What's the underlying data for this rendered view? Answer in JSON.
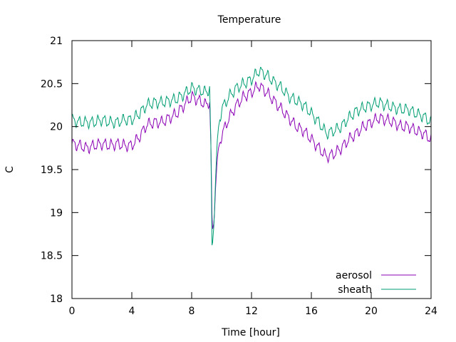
{
  "chart_data": {
    "type": "line",
    "title": "Temperature",
    "xlabel": "Time [hour]",
    "ylabel": "C",
    "xlim": [
      0,
      24
    ],
    "ylim": [
      18,
      21
    ],
    "xticks": [
      "0",
      "4",
      "8",
      "12",
      "16",
      "20",
      "24"
    ],
    "yticks": [
      "18",
      "18.5",
      "19",
      "19.5",
      "20",
      "20.5",
      "21"
    ],
    "grid": false,
    "legend_position": "bottom-right",
    "series": [
      {
        "name": "aerosol",
        "color": "#8b00b5",
        "x": [
          0,
          0.5,
          1,
          1.5,
          2,
          2.5,
          3,
          3.5,
          4,
          4.5,
          5,
          5.5,
          6,
          6.5,
          7,
          7.5,
          8,
          8.5,
          9,
          9.2,
          9.3,
          9.35,
          9.4,
          9.5,
          9.6,
          9.7,
          9.8,
          10,
          10.5,
          11,
          11.5,
          12,
          12.5,
          13,
          13.5,
          14,
          14.5,
          15,
          15.5,
          16,
          16.5,
          17,
          17.5,
          18,
          18.5,
          19,
          19.5,
          20,
          20.5,
          21,
          21.5,
          22,
          22.5,
          23,
          23.5,
          24
        ],
        "y": [
          19.8,
          19.78,
          19.75,
          19.78,
          19.8,
          19.78,
          19.8,
          19.78,
          19.78,
          19.88,
          20.02,
          20.05,
          20.05,
          20.1,
          20.15,
          20.25,
          20.35,
          20.3,
          20.25,
          20.3,
          19.7,
          19.0,
          18.8,
          18.9,
          19.3,
          19.6,
          19.75,
          19.9,
          20.1,
          20.25,
          20.35,
          20.4,
          20.48,
          20.4,
          20.3,
          20.2,
          20.1,
          20.0,
          19.95,
          19.85,
          19.75,
          19.65,
          19.68,
          19.75,
          19.85,
          19.92,
          20.0,
          20.05,
          20.1,
          20.08,
          20.05,
          20.0,
          20.0,
          19.95,
          19.92,
          19.85
        ]
      },
      {
        "name": "sheath",
        "color": "#009e73",
        "x": [
          0,
          0.5,
          1,
          1.5,
          2,
          2.5,
          3,
          3.5,
          4,
          4.5,
          5,
          5.5,
          6,
          6.5,
          7,
          7.5,
          8,
          8.5,
          9,
          9.2,
          9.3,
          9.35,
          9.4,
          9.5,
          9.6,
          9.7,
          9.8,
          10,
          10.5,
          11,
          11.5,
          12,
          12.5,
          13,
          13.5,
          14,
          14.5,
          15,
          15.5,
          16,
          16.5,
          17,
          17.5,
          18,
          18.5,
          19,
          19.5,
          20,
          20.5,
          21,
          21.5,
          22,
          22.5,
          23,
          23.5,
          24
        ],
        "y": [
          20.08,
          20.05,
          20.05,
          20.05,
          20.08,
          20.05,
          20.05,
          20.08,
          20.08,
          20.15,
          20.25,
          20.28,
          20.28,
          20.3,
          20.32,
          20.38,
          20.45,
          20.42,
          20.4,
          20.45,
          19.7,
          18.6,
          18.65,
          18.9,
          19.4,
          19.8,
          20.0,
          20.2,
          20.35,
          20.45,
          20.5,
          20.55,
          20.65,
          20.6,
          20.52,
          20.45,
          20.35,
          20.3,
          20.25,
          20.15,
          20.05,
          19.92,
          19.95,
          20.0,
          20.1,
          20.18,
          20.22,
          20.25,
          20.28,
          20.25,
          20.22,
          20.2,
          20.2,
          20.15,
          20.12,
          20.05
        ]
      }
    ]
  }
}
